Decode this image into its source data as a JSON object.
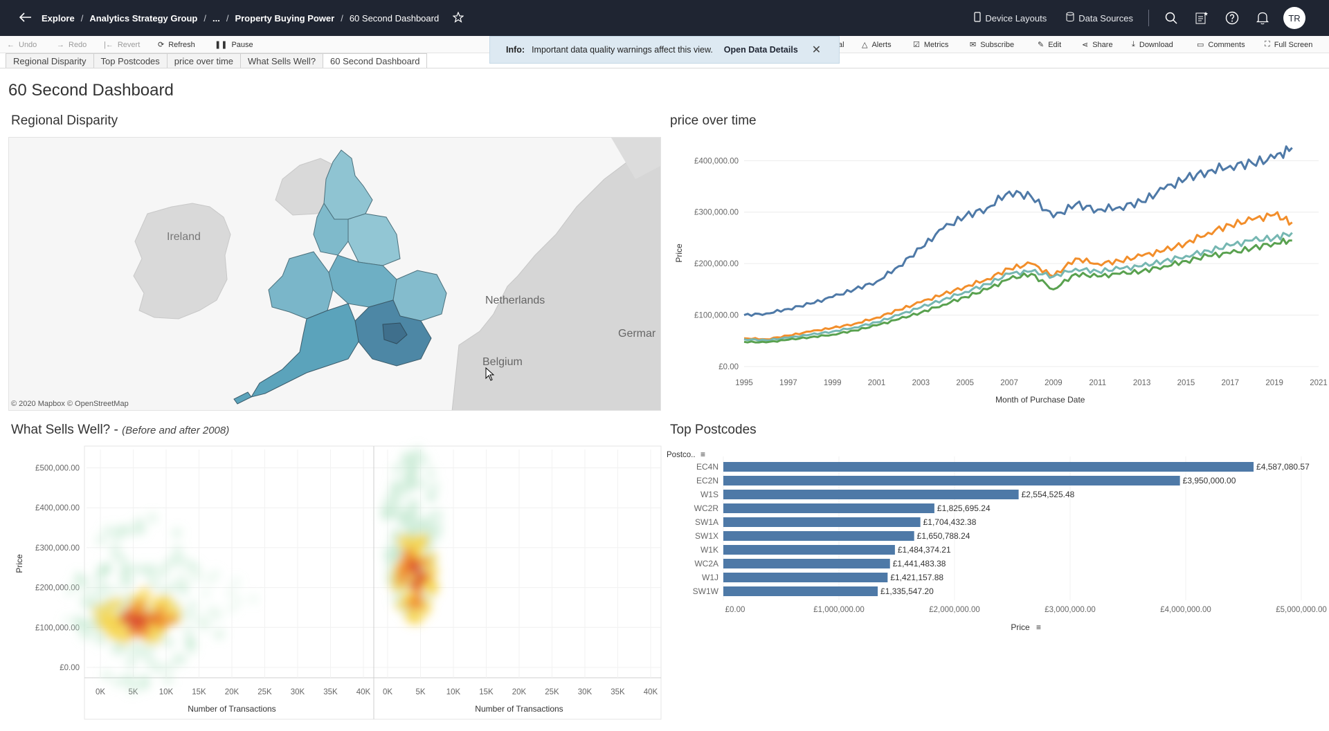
{
  "topbar": {
    "breadcrumb": [
      "Explore",
      "Analytics Strategy Group",
      "...",
      "Property Buying Power",
      "60 Second Dashboard"
    ],
    "separator": "/",
    "device_layouts": "Device Layouts",
    "data_sources": "Data Sources",
    "avatar_initials": "TR"
  },
  "toolbar": {
    "undo": "Undo",
    "redo": "Redo",
    "revert": "Revert",
    "refresh": "Refresh",
    "pause": "Pause",
    "partial": "al",
    "alerts": "Alerts",
    "metrics": "Metrics",
    "subscribe": "Subscribe",
    "edit": "Edit",
    "share": "Share",
    "download": "Download",
    "comments": "Comments",
    "full_screen": "Full Screen"
  },
  "tabs": [
    "Regional Disparity",
    "Top Postcodes",
    "price over time",
    "What Sells Well?",
    "60 Second Dashboard"
  ],
  "active_tab": "60 Second Dashboard",
  "info_banner": {
    "label": "Info:",
    "message": "Important data quality warnings affect this view.",
    "link": "Open Data Details"
  },
  "dashboard_title": "60 Second Dashboard",
  "map": {
    "title": "Regional Disparity",
    "labels": [
      "Ireland",
      "Netherlands",
      "Belgium",
      "Germar"
    ],
    "attribution": "© 2020 Mapbox © OpenStreetMap",
    "fill_color": "#4f9bb5"
  },
  "heatmap": {
    "title": "What Sells Well? - ",
    "subtitle": "(Before and after 2008)",
    "ylabel": "Price",
    "xlabel": "Number of Transactions",
    "yticks": [
      "£500,000.00",
      "£400,000.00",
      "£300,000.00",
      "£200,000.00",
      "£100,000.00",
      "£0.00"
    ],
    "xticks": [
      "0K",
      "5K",
      "10K",
      "15K",
      "20K",
      "25K",
      "30K",
      "35K",
      "40K"
    ]
  },
  "chart_data": [
    {
      "type": "line",
      "title": "price over time",
      "xlabel": "Month of Purchase Date",
      "ylabel": "Price",
      "xlim": [
        1995,
        2021
      ],
      "ylim": [
        0,
        430000
      ],
      "yticks": [
        "£0.00",
        "£100,000.00",
        "£200,000.00",
        "£300,000.00",
        "£400,000.00"
      ],
      "xticks": [
        "1995",
        "1997",
        "1999",
        "2001",
        "2003",
        "2005",
        "2007",
        "2009",
        "2011",
        "2013",
        "2015",
        "2017",
        "2019",
        "2021"
      ],
      "x": [
        1995,
        1996,
        1997,
        1998,
        1999,
        2000,
        2001,
        2002,
        2003,
        2004,
        2005,
        2006,
        2007,
        2008,
        2009,
        2010,
        2011,
        2012,
        2013,
        2014,
        2015,
        2016,
        2017,
        2018,
        2019,
        2019.8
      ],
      "series": [
        {
          "color": "#4e79a7",
          "values": [
            100000,
            103000,
            112000,
            122000,
            135000,
            150000,
            165000,
            195000,
            230000,
            268000,
            292000,
            308000,
            340000,
            330000,
            290000,
            315000,
            305000,
            310000,
            320000,
            345000,
            365000,
            380000,
            390000,
            395000,
            405000,
            425000
          ]
        },
        {
          "color": "#f28e2b",
          "values": [
            55000,
            53000,
            60000,
            68000,
            75000,
            83000,
            95000,
            110000,
            125000,
            140000,
            155000,
            170000,
            190000,
            200000,
            175000,
            210000,
            200000,
            205000,
            215000,
            225000,
            240000,
            260000,
            275000,
            285000,
            295000,
            280000
          ]
        },
        {
          "color": "#76b7b2",
          "values": [
            53000,
            51000,
            56000,
            62000,
            68000,
            76000,
            86000,
            100000,
            115000,
            130000,
            145000,
            160000,
            180000,
            185000,
            175000,
            190000,
            185000,
            190000,
            195000,
            205000,
            215000,
            225000,
            235000,
            245000,
            250000,
            260000
          ]
        },
        {
          "color": "#59a14f",
          "values": [
            48000,
            47000,
            52000,
            57000,
            62000,
            70000,
            80000,
            92000,
            105000,
            120000,
            135000,
            150000,
            170000,
            180000,
            150000,
            180000,
            175000,
            180000,
            185000,
            195000,
            205000,
            215000,
            220000,
            230000,
            240000,
            245000
          ]
        }
      ]
    },
    {
      "type": "bar",
      "title": "Top Postcodes",
      "ylabel": "Postco..",
      "xlabel": "Price",
      "xlim": [
        0,
        5000000
      ],
      "xticks": [
        "£0.00",
        "£1,000,000.00",
        "£2,000,000.00",
        "£3,000,000.00",
        "£4,000,000.00",
        "£5,000,000.00"
      ],
      "categories": [
        "EC4N",
        "EC2N",
        "W1S",
        "WC2R",
        "SW1A",
        "SW1X",
        "W1K",
        "WC2A",
        "W1J",
        "SW1W"
      ],
      "values": [
        4587080.57,
        3950000.0,
        2554525.48,
        1825695.24,
        1704432.38,
        1650788.24,
        1484374.21,
        1441483.38,
        1421157.88,
        1335547.2
      ],
      "value_labels": [
        "£4,587,080.57",
        "£3,950,000.00",
        "£2,554,525.48",
        "£1,825,695.24",
        "£1,704,432.38",
        "£1,650,788.24",
        "£1,484,374.21",
        "£1,441,483.38",
        "£1,421,157.88",
        "£1,335,547.20"
      ],
      "color": "#4e79a7"
    }
  ]
}
